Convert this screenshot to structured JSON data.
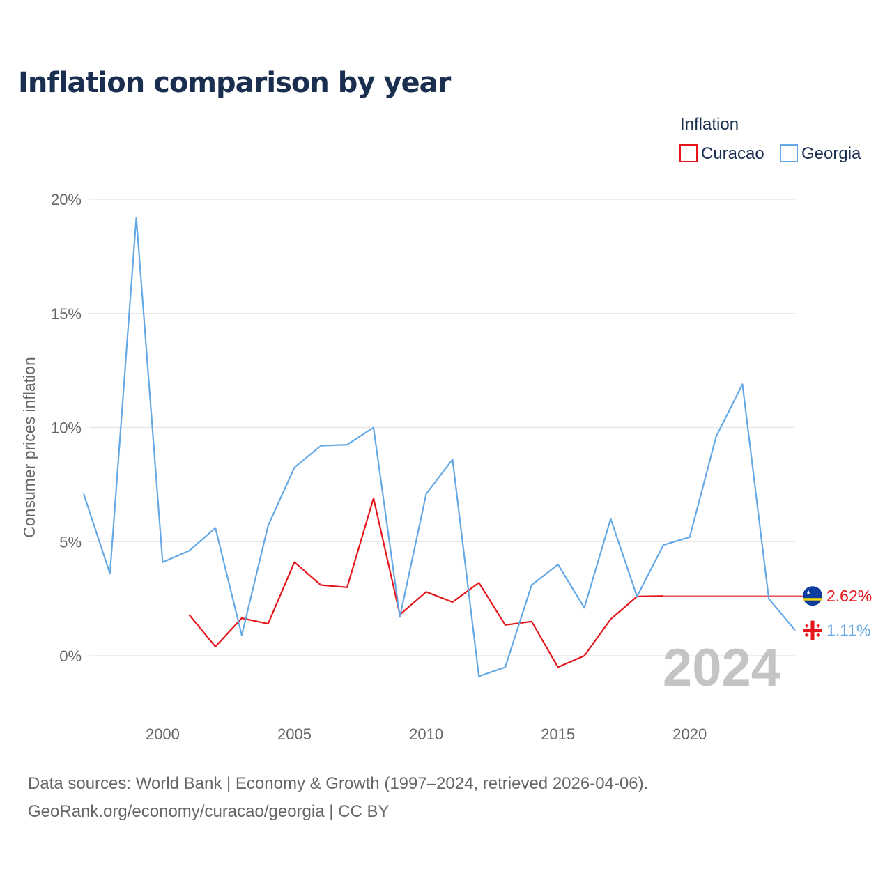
{
  "title": "Inflation comparison by year",
  "legend": {
    "title": "Inflation",
    "items": [
      {
        "label": "Curacao",
        "color": "#e4151b"
      },
      {
        "label": "Georgia",
        "color": "#64a8e5"
      }
    ]
  },
  "current_year": "2024",
  "source_line1": "Data sources: World Bank | Economy & Growth (1997–2024, retrieved 2026-04-06).",
  "source_line2": "GeoRank.org/economy/curacao/georgia | CC BY",
  "chart_data": {
    "type": "line",
    "title": "Inflation comparison by year",
    "xlabel": "",
    "ylabel": "Consumer prices inflation",
    "x_range": [
      1997,
      2024
    ],
    "y_range": [
      -2.2,
      20
    ],
    "x_ticks": [
      {
        "value": 2000,
        "label": "2000"
      },
      {
        "value": 2005,
        "label": "2005"
      },
      {
        "value": 2010,
        "label": "2010"
      },
      {
        "value": 2015,
        "label": "2015"
      },
      {
        "value": 2020,
        "label": "2020"
      }
    ],
    "y_ticks": [
      {
        "value": 0,
        "label": "0%"
      },
      {
        "value": 5,
        "label": "5%"
      },
      {
        "value": 10,
        "label": "10%"
      },
      {
        "value": 15,
        "label": "15%"
      },
      {
        "value": 20,
        "label": "20%"
      }
    ],
    "series": [
      {
        "name": "Curacao",
        "color": "#e4151b",
        "end_label": "2.62%",
        "points": [
          [
            2001,
            1.8
          ],
          [
            2002,
            0.4
          ],
          [
            2003,
            1.65
          ],
          [
            2004,
            1.4
          ],
          [
            2005,
            4.1
          ],
          [
            2006,
            3.1
          ],
          [
            2007,
            3.0
          ],
          [
            2008,
            6.9
          ],
          [
            2009,
            1.8
          ],
          [
            2010,
            2.8
          ],
          [
            2011,
            2.35
          ],
          [
            2012,
            3.2
          ],
          [
            2013,
            1.35
          ],
          [
            2014,
            1.5
          ],
          [
            2015,
            -0.5
          ],
          [
            2016,
            0.0
          ],
          [
            2017,
            1.6
          ],
          [
            2018,
            2.6
          ],
          [
            2019,
            2.62
          ]
        ],
        "carry_forward_to": 2024,
        "end_value": 2.62
      },
      {
        "name": "Georgia",
        "color": "#64a8e5",
        "end_label": "1.11%",
        "points": [
          [
            1997,
            7.1
          ],
          [
            1998,
            3.6
          ],
          [
            1999,
            19.2
          ],
          [
            2000,
            4.1
          ],
          [
            2001,
            4.6
          ],
          [
            2002,
            5.6
          ],
          [
            2003,
            0.9
          ],
          [
            2004,
            5.7
          ],
          [
            2005,
            8.25
          ],
          [
            2006,
            9.2
          ],
          [
            2007,
            9.25
          ],
          [
            2008,
            10.0
          ],
          [
            2009,
            1.7
          ],
          [
            2010,
            7.1
          ],
          [
            2011,
            8.6
          ],
          [
            2012,
            -0.9
          ],
          [
            2013,
            -0.5
          ],
          [
            2014,
            3.1
          ],
          [
            2015,
            4.0
          ],
          [
            2016,
            2.1
          ],
          [
            2017,
            6.0
          ],
          [
            2018,
            2.6
          ],
          [
            2019,
            4.85
          ],
          [
            2020,
            5.2
          ],
          [
            2021,
            9.6
          ],
          [
            2022,
            11.9
          ],
          [
            2023,
            2.5
          ],
          [
            2024,
            1.11
          ]
        ],
        "end_value": 1.11
      }
    ]
  }
}
